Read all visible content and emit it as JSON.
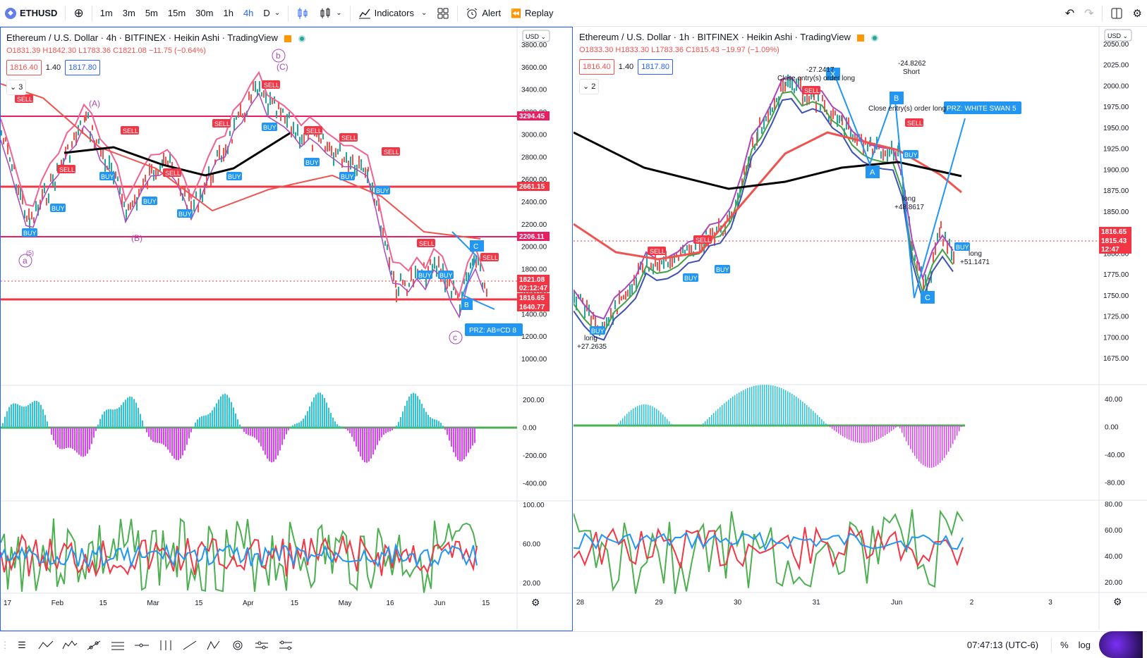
{
  "topbar": {
    "symbol": "ETHUSD",
    "intervals": [
      "1m",
      "3m",
      "5m",
      "15m",
      "30m",
      "1h",
      "4h",
      "D"
    ],
    "active_interval": "4h",
    "indicators_label": "Indicators",
    "alert_label": "Alert",
    "replay_label": "Replay"
  },
  "left": {
    "title": "Ethereum / U.S. Dollar · 4h · BITFINEX · Heikin Ashi · TradingView",
    "ohlc": "O1831.39 H1842.30 L1783.36 C1821.08 −11.75 (−0.64%)",
    "bid": "1816.40",
    "spread": "1.40",
    "ask": "1817.80",
    "collapse_count": "3",
    "currency": "USD",
    "price_ticks": [
      "3800.00",
      "3600.00",
      "3400.00",
      "3200.00",
      "3000.00",
      "2800.00",
      "2600.00",
      "2400.00",
      "2200.00",
      "2000.00",
      "1800.00",
      "1600.00",
      "1400.00",
      "1200.00",
      "1000.00"
    ],
    "osc_ticks": [
      "200.00",
      "0.00",
      "-200.00",
      "-400.00"
    ],
    "rsi_ticks": [
      "100.00",
      "60.00",
      "20.00"
    ],
    "time_ticks": [
      "17",
      "Feb",
      "15",
      "Mar",
      "15",
      "Apr",
      "15",
      "May",
      "16",
      "Jun",
      "15"
    ],
    "price_labels": [
      {
        "text": "3294.45",
        "color": "#e91e63"
      },
      {
        "text": "2661.15",
        "color": "#f23645"
      },
      {
        "text": "2206.11",
        "color": "#e91e63"
      },
      {
        "text": "1821.08",
        "color": "#f23645"
      },
      {
        "text": "02:12:47",
        "color": "#f23645"
      },
      {
        "text": "1816.65",
        "color": "#f23645"
      },
      {
        "text": "1640.77",
        "color": "#f23645"
      }
    ],
    "annotations": {
      "wave_b": "b",
      "wave_c": "c",
      "wave_a": "a",
      "wave_A": "(A)",
      "wave_B": "(B)",
      "wave_C": "(C)",
      "wave_5": "(5)",
      "prz": "PRZ: AB=CD 8",
      "c_label": "C",
      "b_label": "B"
    }
  },
  "right": {
    "title": "Ethereum / U.S. Dollar · 1h · BITFINEX · Heikin Ashi · TradingView",
    "ohlc": "O1833.30 H1833.30 L1783.36 C1815.43 −19.97 (−1.09%)",
    "bid": "1816.40",
    "spread": "1.40",
    "ask": "1817.80",
    "collapse_count": "2",
    "currency": "USD",
    "price_ticks": [
      "2050.00",
      "2025.00",
      "2000.00",
      "1975.00",
      "1950.00",
      "1925.00",
      "1900.00",
      "1875.00",
      "1850.00",
      "1825.00",
      "1800.00",
      "1775.00",
      "1750.00",
      "1725.00",
      "1700.00",
      "1675.00"
    ],
    "osc_ticks": [
      "40.00",
      "0.00",
      "-40.00",
      "-80.00"
    ],
    "rsi_ticks": [
      "80.00",
      "60.00",
      "40.00",
      "20.00"
    ],
    "time_ticks": [
      "28",
      "29",
      "30",
      "31",
      "Jun",
      "2",
      "3"
    ],
    "price_labels": [
      {
        "text": "1816.65",
        "color": "#f23645"
      },
      {
        "text": "1815.43",
        "color": "#f23645"
      },
      {
        "text": "12:47",
        "color": "#f23645"
      }
    ],
    "annotations": {
      "short1_val": "-27.2417",
      "short1_note": "Close entry(s) order long",
      "short2_val": "-24.8262",
      "short2_label": "Short",
      "short2_note": "Close entry(s) order long",
      "prz": "PRZ: WHITE SWAN 5",
      "long1": "long",
      "long1_val": "+48.8617",
      "long2": "long",
      "long2_val": "+51.1471",
      "long3": "long",
      "long3_val": "+27.2635",
      "a_label": "A",
      "c_label": "C",
      "x_label": "X",
      "b_label": "B"
    }
  },
  "bottombar": {
    "time": "07:47:13 (UTC-6)",
    "percent": "%",
    "log": "log"
  },
  "colors": {
    "accent": "#2962ff",
    "sell": "#f23645",
    "buy": "#2196f3",
    "ema_black": "#000000",
    "osc_teal": "#26c6da",
    "osc_magenta": "#e040fb"
  }
}
